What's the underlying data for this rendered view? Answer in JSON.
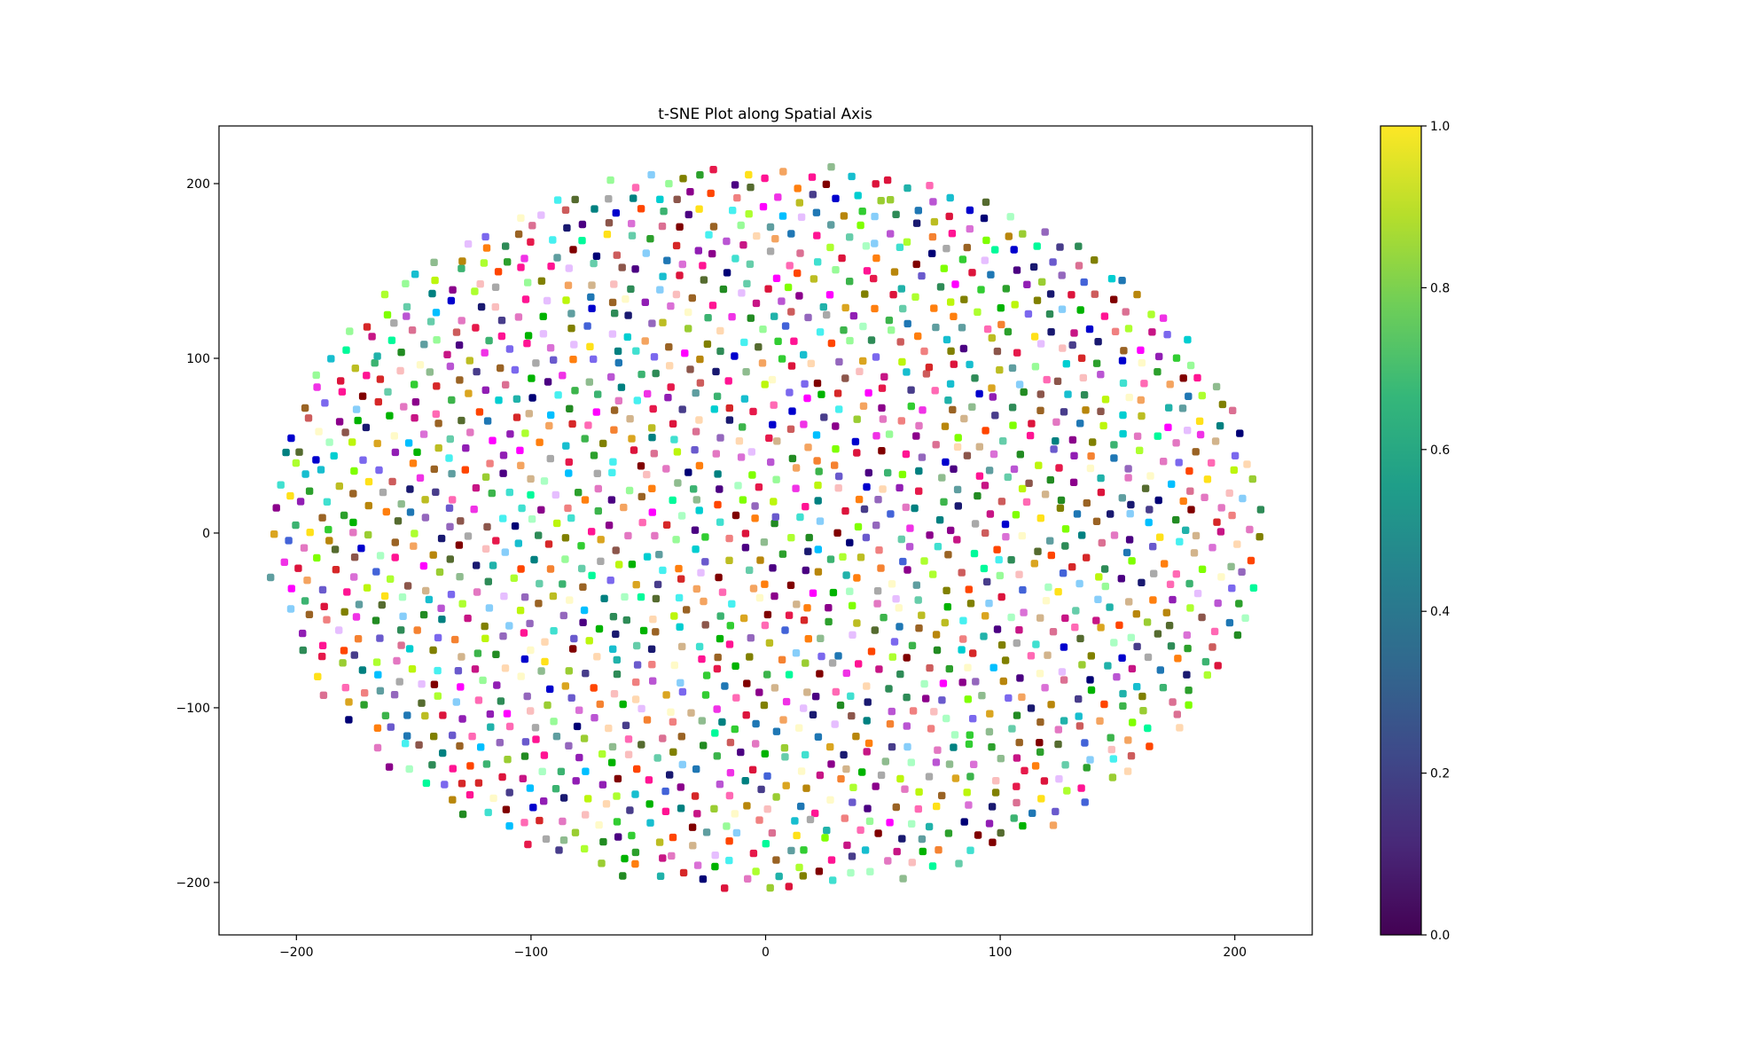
{
  "chart_data": {
    "type": "scatter",
    "title": "t-SNE Plot along Spatial Axis",
    "xlabel": "",
    "ylabel": "",
    "xlim": [
      -233,
      233
    ],
    "ylim": [
      -230,
      233
    ],
    "xticks": [
      -200,
      -100,
      0,
      100,
      200
    ],
    "yticks": [
      -200,
      -100,
      0,
      100,
      200
    ],
    "xtick_labels": [
      "−200",
      "−100",
      "0",
      "100",
      "200"
    ],
    "ytick_labels": [
      "−200",
      "−100",
      "0",
      "100",
      "200"
    ],
    "grid": false,
    "legend": "none",
    "colorbar": {
      "colormap": "viridis",
      "range": [
        0.0,
        1.0
      ],
      "ticks": [
        0.0,
        0.2,
        0.4,
        0.6,
        0.8,
        1.0
      ],
      "tick_labels": [
        "0.0",
        "0.2",
        "0.4",
        "0.6",
        "0.8",
        "1.0"
      ],
      "gradient_colors": [
        "#440154",
        "#482878",
        "#3e4989",
        "#31688e",
        "#26828e",
        "#1f9e89",
        "#35b779",
        "#6ece58",
        "#b5de2b",
        "#fde725"
      ]
    },
    "point_cloud": {
      "count": 1700,
      "shape": "elliptical disc, roughly uniform density",
      "x_extent": [
        -212,
        212
      ],
      "y_extent": [
        -205,
        212
      ],
      "marker": "filled circle, random distinct RGB color per point"
    },
    "palette": [
      "#e6194b",
      "#3cb44b",
      "#ffe119",
      "#4363d8",
      "#f58231",
      "#911eb4",
      "#46f0f0",
      "#f032e6",
      "#bcf60c",
      "#fabebe",
      "#008080",
      "#e6beff",
      "#9a6324",
      "#fffac8",
      "#800000",
      "#aaffc3",
      "#808000",
      "#ffd8b1",
      "#000075",
      "#a9a9a9",
      "#00b300",
      "#1f77b4",
      "#d62728",
      "#2ca02c",
      "#9467bd",
      "#8c564b",
      "#e377c2",
      "#17becf",
      "#bcbd22",
      "#ff7f0e",
      "#00ced1",
      "#ff1493",
      "#32cd32",
      "#6a5acd",
      "#20b2aa",
      "#dc143c",
      "#7b68ee",
      "#3cb371",
      "#c71585",
      "#40e0d0",
      "#ff69b4",
      "#0000cd",
      "#228b22",
      "#da70d6",
      "#8fbc8f",
      "#b8860b",
      "#4b0082",
      "#00fa9a",
      "#ff4500",
      "#2e8b57",
      "#9acd32",
      "#ba55d3",
      "#87cefa",
      "#cd5c5c",
      "#66cdaa",
      "#daa520",
      "#483d8b",
      "#7fff00",
      "#ff00ff",
      "#00bfff",
      "#556b2f",
      "#f4a460",
      "#191970",
      "#adff2f",
      "#db7093",
      "#5f9ea0",
      "#d2b48c",
      "#8b008b",
      "#98fb98",
      "#f08080"
    ]
  }
}
